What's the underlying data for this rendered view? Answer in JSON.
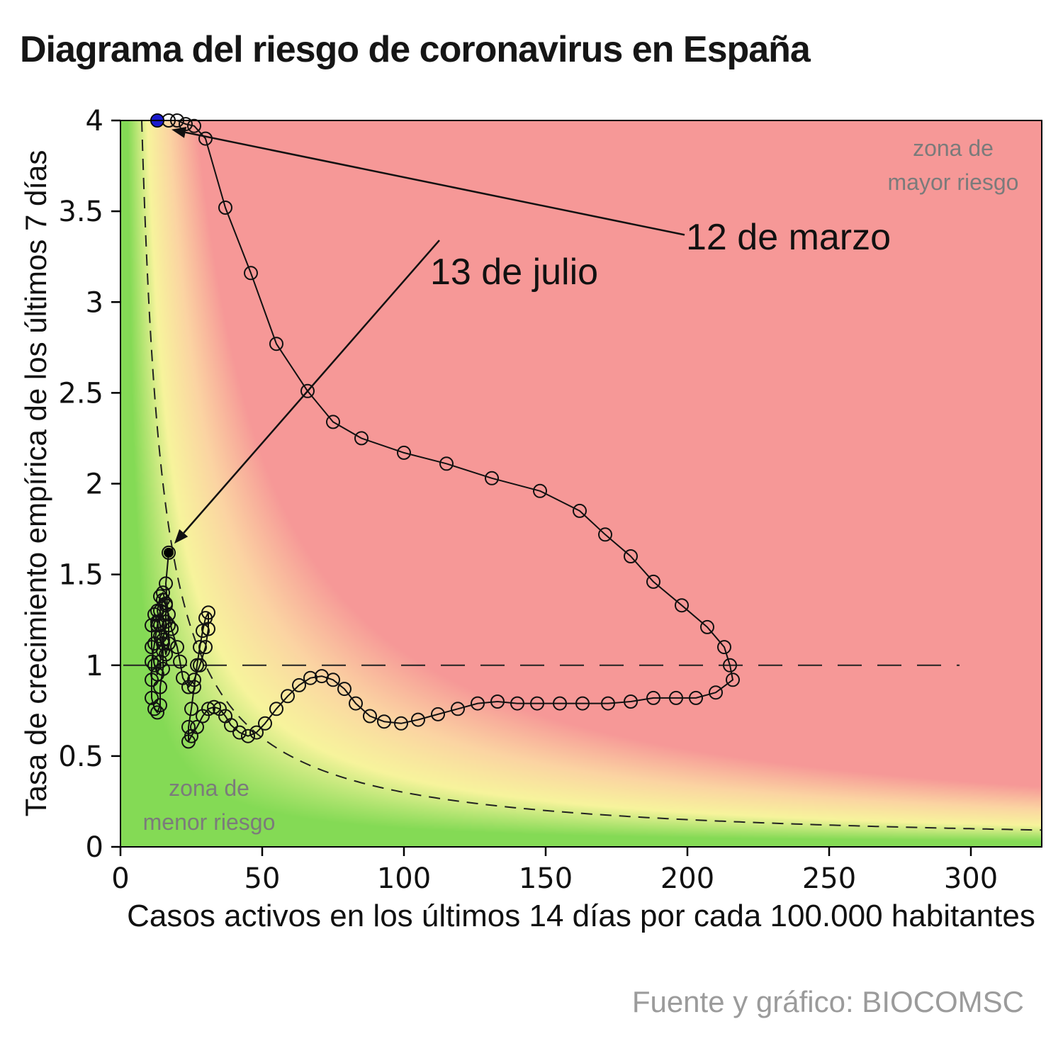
{
  "title": "Diagrama del riesgo de coronavirus en España",
  "source": "Fuente y gráfico: BIOCOMSC",
  "chart_data": {
    "type": "scatter",
    "title": "Diagrama del riesgo de coronavirus en España",
    "xlabel": "Casos activos en los últimos 14 días por cada 100.000 habitantes",
    "ylabel": "Tasa de crecimiento empírica de los últimos 7 días",
    "xlim": [
      0,
      325
    ],
    "ylim": [
      0,
      4
    ],
    "x_ticks": [
      0,
      50,
      100,
      150,
      200,
      250,
      300
    ],
    "y_ticks": [
      0,
      0.5,
      1,
      1.5,
      2,
      2.5,
      3,
      3.5,
      4
    ],
    "y_tick_labels": [
      "0",
      "0.5",
      "1",
      "1.5",
      "2",
      "2.5",
      "3",
      "3.5",
      "4"
    ],
    "grid": false,
    "legend": "none",
    "background": {
      "metric": "risk = x * y",
      "stops": [
        {
          "p": 10,
          "color": "#84da55"
        },
        {
          "p": 38,
          "color": "#f7f49c"
        },
        {
          "p": 68,
          "color": "#fbd4a2"
        },
        {
          "p": 108,
          "color": "#f69897"
        }
      ]
    },
    "risk_threshold_curve": {
      "equation": "x*y = 30",
      "constant": 30,
      "style": "dashed"
    },
    "reference_line_y": 1,
    "zones": {
      "high": {
        "line1": "zona de",
        "line2": "mayor riesgo"
      },
      "low": {
        "line1": "zona de",
        "line2": "menor riesgo"
      }
    },
    "annotations": [
      {
        "label": "12 de marzo",
        "from": [
          199,
          3.37
        ],
        "to": [
          18,
          3.95
        ]
      },
      {
        "label": "13 de julio",
        "from": [
          112.5,
          3.34
        ],
        "to": [
          19,
          1.67
        ]
      }
    ],
    "start_point": {
      "x": 13,
      "y": 4.0,
      "color": "#1a1acd",
      "label": "12 de marzo"
    },
    "end_point": {
      "x": 17,
      "y": 1.62,
      "color": "#000000",
      "label": "13 de julio"
    },
    "trajectory": [
      [
        13,
        4.0
      ],
      [
        17,
        4.0
      ],
      [
        20,
        4.0
      ],
      [
        23,
        3.98
      ],
      [
        26,
        3.97
      ],
      [
        30,
        3.9
      ],
      [
        37,
        3.52
      ],
      [
        46,
        3.16
      ],
      [
        55,
        2.77
      ],
      [
        66,
        2.51
      ],
      [
        75,
        2.34
      ],
      [
        85,
        2.25
      ],
      [
        100,
        2.17
      ],
      [
        115,
        2.11
      ],
      [
        131,
        2.03
      ],
      [
        148,
        1.96
      ],
      [
        162,
        1.85
      ],
      [
        171,
        1.72
      ],
      [
        180,
        1.6
      ],
      [
        188,
        1.46
      ],
      [
        198,
        1.33
      ],
      [
        207,
        1.21
      ],
      [
        213,
        1.1
      ],
      [
        215,
        1.0
      ],
      [
        216,
        0.92
      ],
      [
        210,
        0.85
      ],
      [
        203,
        0.82
      ],
      [
        196,
        0.82
      ],
      [
        188,
        0.82
      ],
      [
        180,
        0.8
      ],
      [
        172,
        0.79
      ],
      [
        163,
        0.79
      ],
      [
        155,
        0.79
      ],
      [
        147,
        0.79
      ],
      [
        140,
        0.79
      ],
      [
        133,
        0.8
      ],
      [
        126,
        0.79
      ],
      [
        119,
        0.76
      ],
      [
        112,
        0.73
      ],
      [
        105,
        0.7
      ],
      [
        99,
        0.68
      ],
      [
        93,
        0.69
      ],
      [
        88,
        0.72
      ],
      [
        83,
        0.79
      ],
      [
        79,
        0.87
      ],
      [
        75,
        0.92
      ],
      [
        71,
        0.94
      ],
      [
        67,
        0.93
      ],
      [
        63,
        0.89
      ],
      [
        59,
        0.83
      ],
      [
        55,
        0.76
      ],
      [
        51,
        0.68
      ],
      [
        48,
        0.63
      ],
      [
        45,
        0.61
      ],
      [
        42,
        0.63
      ],
      [
        39,
        0.67
      ],
      [
        37,
        0.72
      ],
      [
        35,
        0.76
      ],
      [
        33,
        0.77
      ],
      [
        31,
        0.76
      ],
      [
        29,
        0.72
      ],
      [
        27,
        0.66
      ],
      [
        25,
        0.61
      ],
      [
        24,
        0.58
      ],
      [
        24,
        0.66
      ],
      [
        25,
        0.76
      ],
      [
        26,
        0.88
      ],
      [
        27,
        1.0
      ],
      [
        28,
        1.1
      ],
      [
        29,
        1.19
      ],
      [
        30,
        1.26
      ],
      [
        31,
        1.29
      ],
      [
        31,
        1.2
      ],
      [
        30,
        1.1
      ],
      [
        28,
        1.0
      ],
      [
        26,
        0.92
      ],
      [
        24,
        0.88
      ],
      [
        22,
        0.93
      ],
      [
        21,
        1.02
      ],
      [
        20,
        1.1
      ],
      [
        18,
        1.2
      ],
      [
        17,
        1.28
      ],
      [
        16,
        1.33
      ],
      [
        15,
        1.36
      ],
      [
        14,
        1.3
      ],
      [
        13,
        1.22
      ],
      [
        12,
        1.12
      ],
      [
        11,
        1.02
      ],
      [
        11,
        0.92
      ],
      [
        11,
        0.82
      ],
      [
        12,
        0.76
      ],
      [
        13,
        0.74
      ],
      [
        14,
        0.78
      ],
      [
        14,
        0.88
      ],
      [
        15,
        0.98
      ],
      [
        15,
        1.08
      ],
      [
        14,
        1.16
      ],
      [
        13,
        1.24
      ],
      [
        12,
        1.28
      ],
      [
        11,
        1.22
      ],
      [
        11,
        1.1
      ],
      [
        12,
        1.0
      ],
      [
        13,
        0.95
      ],
      [
        14,
        1.02
      ],
      [
        15,
        1.12
      ],
      [
        14,
        1.22
      ],
      [
        13,
        1.3
      ],
      [
        14,
        1.38
      ],
      [
        15,
        1.4
      ],
      [
        16,
        1.34
      ],
      [
        16,
        1.24
      ],
      [
        15,
        1.14
      ],
      [
        16,
        1.06
      ],
      [
        17,
        1.12
      ],
      [
        17,
        1.22
      ],
      [
        16,
        1.45
      ],
      [
        17,
        1.62
      ]
    ]
  }
}
